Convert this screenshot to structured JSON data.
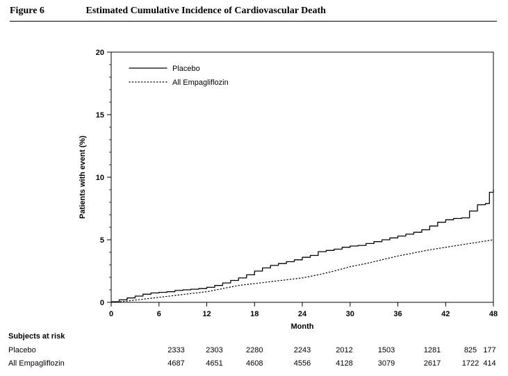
{
  "header": {
    "figure_label": "Figure 6",
    "title": "Estimated Cumulative Incidence of Cardiovascular Death"
  },
  "chart_data": {
    "type": "line",
    "title": "",
    "xlabel": "Month",
    "ylabel": "Patients with event (%)",
    "xlim": [
      0,
      48
    ],
    "ylim": [
      0,
      20
    ],
    "xticks": [
      0,
      6,
      12,
      18,
      24,
      30,
      36,
      42,
      48
    ],
    "yticks": [
      0,
      5,
      10,
      15,
      20
    ],
    "grid": false,
    "legend_position": "top-left-inside",
    "series": [
      {
        "name": "Placebo",
        "style": "solid",
        "step": true,
        "color": "#000000",
        "x": [
          0,
          1,
          2,
          3,
          4,
          5,
          6,
          7,
          8,
          9,
          10,
          11,
          12,
          13,
          14,
          15,
          16,
          17,
          18,
          19,
          20,
          21,
          22,
          23,
          24,
          25,
          26,
          27,
          28,
          29,
          30,
          31,
          32,
          33,
          34,
          35,
          36,
          37,
          38,
          39,
          40,
          41,
          42,
          43,
          44,
          45,
          46,
          47,
          47.5,
          48
        ],
        "y": [
          0.05,
          0.2,
          0.35,
          0.5,
          0.65,
          0.75,
          0.8,
          0.85,
          0.95,
          1.0,
          1.05,
          1.1,
          1.2,
          1.35,
          1.55,
          1.75,
          1.95,
          2.2,
          2.5,
          2.75,
          2.95,
          3.1,
          3.25,
          3.4,
          3.6,
          3.75,
          4.05,
          4.15,
          4.25,
          4.4,
          4.5,
          4.55,
          4.7,
          4.85,
          5.0,
          5.15,
          5.3,
          5.45,
          5.6,
          5.8,
          6.1,
          6.4,
          6.6,
          6.7,
          6.75,
          7.3,
          7.8,
          7.9,
          8.8,
          9.0
        ]
      },
      {
        "name": "All Empagliflozin",
        "style": "dotted",
        "step": false,
        "color": "#000000",
        "x": [
          0,
          2,
          4,
          6,
          8,
          10,
          12,
          14,
          16,
          18,
          20,
          22,
          24,
          26,
          28,
          30,
          32,
          34,
          36,
          38,
          40,
          42,
          44,
          46,
          48
        ],
        "y": [
          0,
          0.1,
          0.25,
          0.4,
          0.55,
          0.7,
          0.85,
          1.1,
          1.35,
          1.5,
          1.65,
          1.8,
          1.95,
          2.2,
          2.5,
          2.85,
          3.1,
          3.4,
          3.7,
          3.95,
          4.2,
          4.4,
          4.6,
          4.8,
          5.0
        ]
      }
    ]
  },
  "risk_table": {
    "title": "Subjects at risk",
    "rows": [
      {
        "label": "Placebo",
        "values": [
          "2333",
          "2303",
          "2280",
          "2243",
          "2012",
          "1503",
          "1281",
          "825",
          "177"
        ]
      },
      {
        "label": "All Empagliflozin",
        "values": [
          "4687",
          "4651",
          "4608",
          "4556",
          "4128",
          "3079",
          "2617",
          "1722",
          "414"
        ]
      }
    ]
  }
}
